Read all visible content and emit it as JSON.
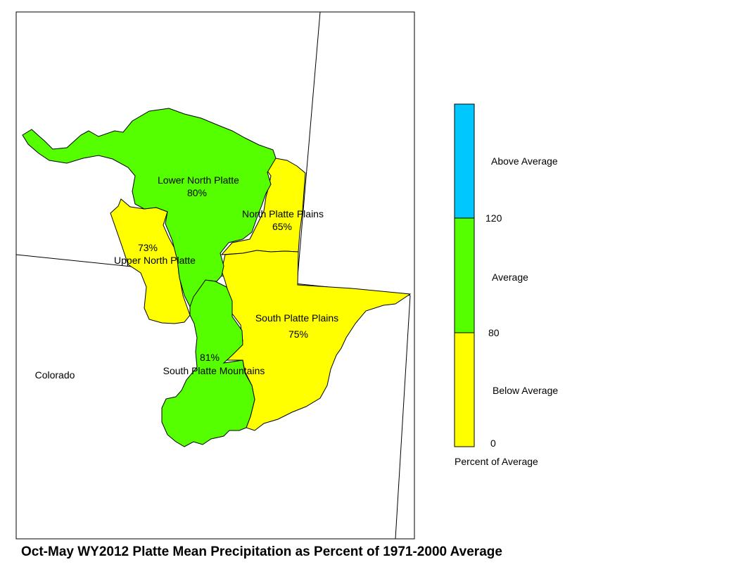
{
  "colors": {
    "below": "#ffff00",
    "average": "#55ff00",
    "above": "#00c8ff",
    "border": "#000000"
  },
  "map": {
    "state_label": "Colorado",
    "basins": [
      {
        "name": "Lower North Platte",
        "value": "80%",
        "class": "average"
      },
      {
        "name": "North Platte Plains",
        "value": "65%",
        "class": "below"
      },
      {
        "name": "Upper North Platte",
        "value": "73%",
        "class": "below"
      },
      {
        "name": "South Platte Plains",
        "value": "75%",
        "class": "below"
      },
      {
        "name": "South Platte Mountains",
        "value": "81%",
        "class": "average"
      }
    ]
  },
  "legend": {
    "above_label": "Above Average",
    "average_label": "Average",
    "below_label": "Below Average",
    "tick_120": "120",
    "tick_80": "80",
    "tick_0": "0",
    "caption": "Percent of Average"
  },
  "title": "Oct-May WY2012 Platte Mean Precipitation as Percent of 1971-2000 Average"
}
